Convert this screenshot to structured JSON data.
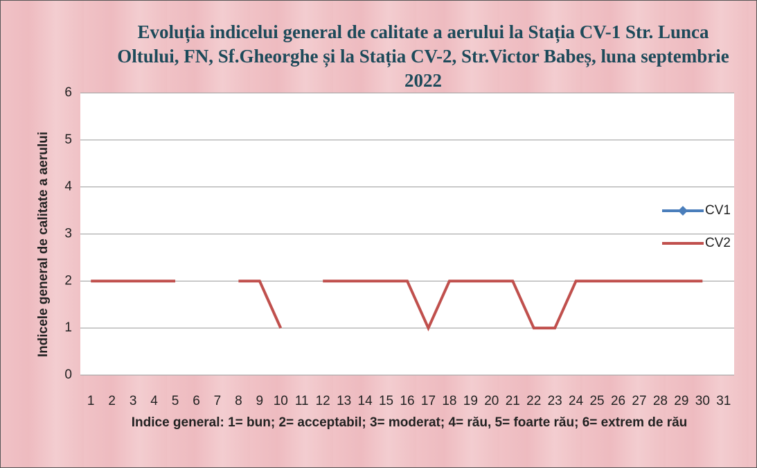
{
  "chart_data": {
    "type": "line",
    "title": "Evoluția indicelui general de calitate a aerului la Stația CV-1 Str. Lunca Oltului, FN, Sf.Gheorghe și la Stația CV-2, Str.Victor Babeș, luna septembrie 2022",
    "x_label": "Indice general: 1= bun; 2= acceptabil; 3= moderat; 4= rău, 5= foarte rău; 6= extrem de rău",
    "y_label": "Indicele general  de calitate a aerului",
    "categories": [
      "1",
      "2",
      "3",
      "4",
      "5",
      "6",
      "7",
      "8",
      "9",
      "10",
      "11",
      "12",
      "13",
      "14",
      "15",
      "16",
      "17",
      "18",
      "19",
      "20",
      "21",
      "22",
      "23",
      "24",
      "25",
      "26",
      "27",
      "28",
      "29",
      "30",
      "31"
    ],
    "series": [
      {
        "name": "CV1",
        "color": "#4a7ebb",
        "values": [
          null,
          null,
          null,
          null,
          null,
          null,
          null,
          null,
          null,
          null,
          null,
          null,
          null,
          null,
          null,
          null,
          null,
          null,
          null,
          null,
          null,
          null,
          null,
          null,
          null,
          null,
          null,
          null,
          null,
          null,
          null
        ]
      },
      {
        "name": "CV2",
        "color": "#c0504d",
        "values": [
          2,
          2,
          2,
          2,
          2,
          null,
          null,
          2,
          2,
          1,
          null,
          2,
          2,
          2,
          2,
          2,
          1,
          2,
          2,
          2,
          2,
          1,
          1,
          2,
          2,
          2,
          2,
          2,
          2,
          2,
          null
        ]
      }
    ],
    "ylim": [
      0,
      6
    ],
    "yticks": [
      0,
      1,
      2,
      3,
      4,
      5,
      6
    ],
    "grid": true
  }
}
